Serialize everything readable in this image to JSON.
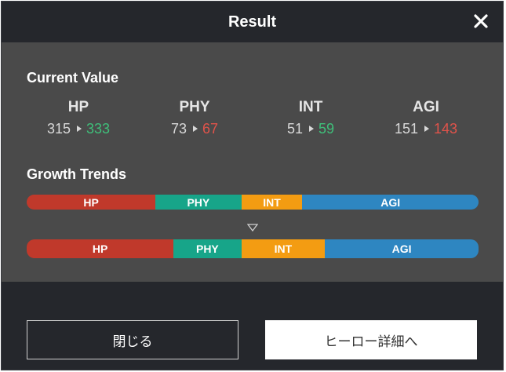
{
  "dialog": {
    "title": "Result",
    "close_icon": "close-icon"
  },
  "current_value": {
    "heading": "Current Value",
    "stats": [
      {
        "name": "HP",
        "before": "315",
        "after": "333",
        "trend": "up"
      },
      {
        "name": "PHY",
        "before": "73",
        "after": "67",
        "trend": "down"
      },
      {
        "name": "INT",
        "before": "51",
        "after": "59",
        "trend": "up"
      },
      {
        "name": "AGI",
        "before": "151",
        "after": "143",
        "trend": "down"
      }
    ]
  },
  "growth_trends": {
    "heading": "Growth Trends",
    "before": [
      {
        "label": "HP",
        "share": 0.285
      },
      {
        "label": "PHY",
        "share": 0.19
      },
      {
        "label": "INT",
        "share": 0.135
      },
      {
        "label": "AGI",
        "share": 0.39
      }
    ],
    "after": [
      {
        "label": "HP",
        "share": 0.325
      },
      {
        "label": "PHY",
        "share": 0.15
      },
      {
        "label": "INT",
        "share": 0.185
      },
      {
        "label": "AGI",
        "share": 0.34
      }
    ]
  },
  "buttons": {
    "close_label": "閉じる",
    "detail_label": "ヒーロー詳細へ"
  },
  "colors": {
    "hp": "#c0392b",
    "phy": "#17a589",
    "int": "#f39c12",
    "agi": "#2e86c1",
    "increase": "#3fbf7a",
    "decrease": "#e0534a"
  }
}
